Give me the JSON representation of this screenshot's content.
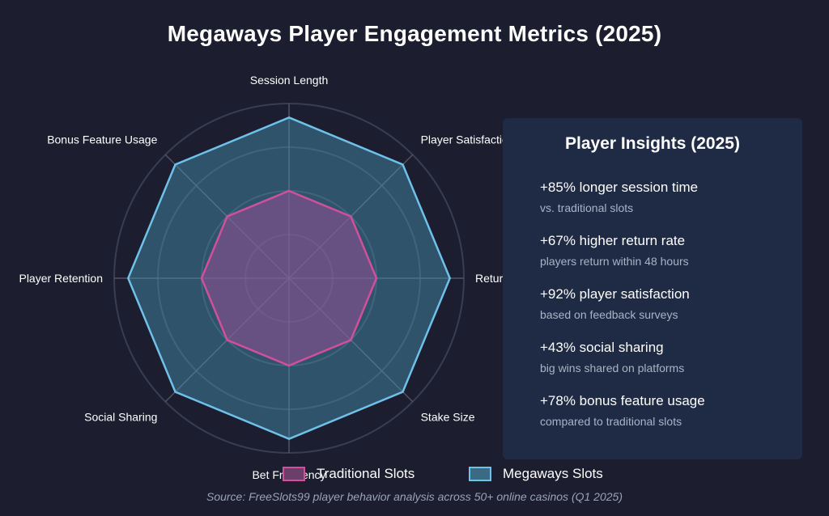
{
  "title": "Megaways Player Engagement Metrics (2025)",
  "chart_data": {
    "type": "radar",
    "axes": [
      "Session Length",
      "Player Satisfaction",
      "Return Rate",
      "Stake Size",
      "Bet Frequency",
      "Social Sharing",
      "Player Retention",
      "Bonus Feature Usage"
    ],
    "axis_labels_shown": [
      "Session Length",
      "Player Satisfaction",
      "Retur",
      "Stake Size",
      "Bet Frequency",
      "Social Sharing",
      "Player Retention",
      "Bonus Feature Usage"
    ],
    "rmax": 100,
    "grid_rings": 4,
    "series": [
      {
        "name": "Traditional Slots",
        "values": [
          50,
          50,
          50,
          50,
          50,
          50,
          50,
          50
        ],
        "color": "#d24f9c",
        "fill": "rgba(150, 80, 150, 0.55)"
      },
      {
        "name": "Megaways Slots",
        "values": [
          92,
          92,
          92,
          92,
          92,
          92,
          92,
          92
        ],
        "color": "#6ec1e8",
        "fill": "rgba(70, 150, 180, 0.45)"
      }
    ]
  },
  "insights": {
    "title": "Player Insights (2025)",
    "items": [
      {
        "head": "+85% longer session time",
        "sub": "vs. traditional slots"
      },
      {
        "head": "+67% higher return rate",
        "sub": "players return within 48 hours"
      },
      {
        "head": "+92% player satisfaction",
        "sub": "based on feedback surveys"
      },
      {
        "head": "+43% social sharing",
        "sub": "big wins shared on platforms"
      },
      {
        "head": "+78% bonus feature usage",
        "sub": "compared to traditional slots"
      }
    ]
  },
  "legend": [
    {
      "label": "Traditional Slots",
      "border": "#d24f9c",
      "fill": "#6b3f6a"
    },
    {
      "label": "Megaways Slots",
      "border": "#6ec1e8",
      "fill": "#3b6a85"
    }
  ],
  "source": "Source: FreeSlots99 player behavior analysis across 50+ online casinos (Q1 2025)"
}
